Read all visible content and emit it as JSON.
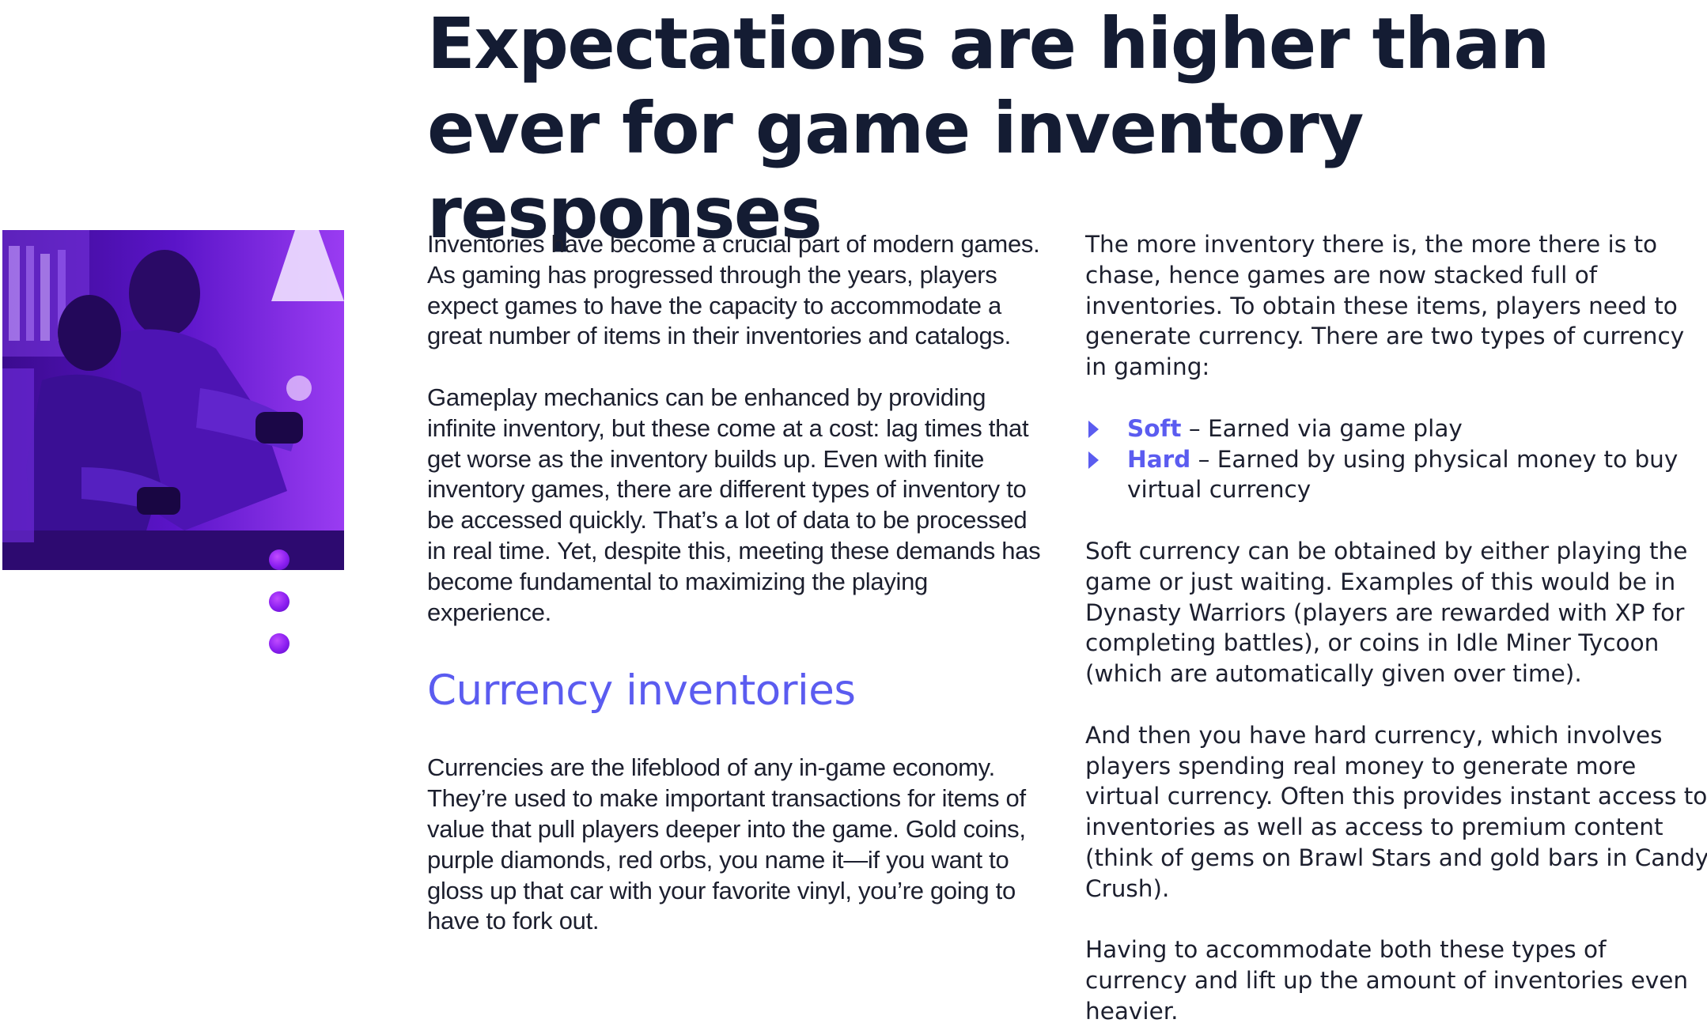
{
  "heading": "Expectations are higher than ever for game inventory responses",
  "col1": {
    "para1": "Inventories have become a crucial part of modern games. As gaming has progressed through the years, players expect games to have the capacity to accommodate a great number of items in their inventories and catalogs.",
    "para2": "Gameplay mechanics can be enhanced by providing infinite inventory, but these come at a cost: lag times that get worse as the inventory builds up. Even with finite inventory games, there are different types of inventory to be accessed quickly. That’s a lot of data to be processed in real time. Yet, despite this, meeting these demands has become fundamental to maximizing the playing experience.",
    "subheading": "Currency inventories",
    "para3": "Currencies are the lifeblood of any in-game economy. They’re used to make important transactions for items of value that pull players deeper into the game. Gold coins, purple diamonds, red orbs, you name it—if you want to gloss up that car with your favorite vinyl, you’re going to have to fork out."
  },
  "col2": {
    "para1": "The more inventory there is, the more there is to chase, hence games are now stacked full of inventories. To obtain these items, players need to generate currency. There are two types of currency in gaming:",
    "bullets": [
      {
        "term": "Soft",
        "text": " – Earned via game play"
      },
      {
        "term": "Hard",
        "text": " – Earned by using physical money to buy virtual currency"
      }
    ],
    "para2": "Soft currency can be obtained by either playing the game or just waiting. Examples of this would be in Dynasty Warriors (players are rewarded with XP for completing battles), or coins in Idle Miner Tycoon (which are automatically given over time).",
    "para3": "And then you have hard currency, which involves players spending real money to generate more virtual currency. Often this provides instant access to inventories as well as access to premium content (think of gems on Brawl Stars and gold bars in Candy Crush).",
    "para4": "Having to accommodate both these types of currency and lift up the amount of inventories even heavier."
  },
  "colors": {
    "accent": "#5b5cf0",
    "heading": "#141c33",
    "body": "#1c1f2e",
    "photo_tint": "#6a1bd6"
  }
}
